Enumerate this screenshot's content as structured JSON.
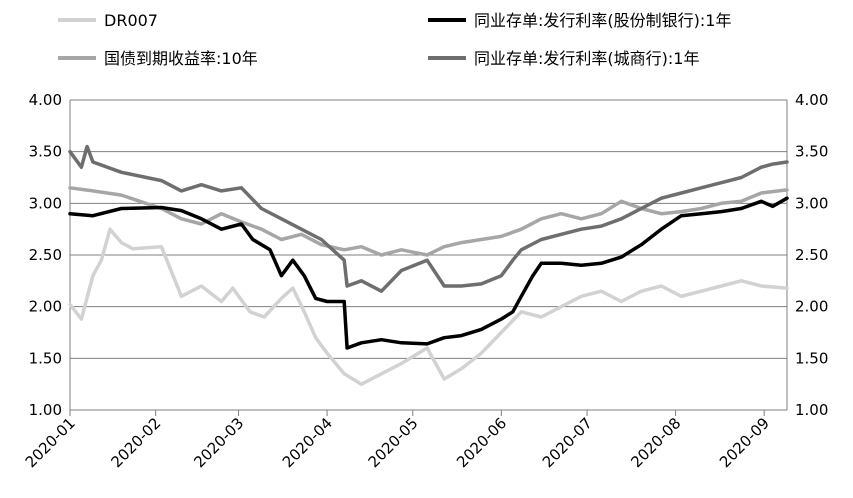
{
  "chart_data": {
    "type": "line",
    "title": "",
    "xlabel": "",
    "ylabel": "",
    "ylim": [
      1.0,
      4.0
    ],
    "y_ticks": [
      "1.00",
      "1.50",
      "2.00",
      "2.50",
      "3.00",
      "3.50",
      "4.00"
    ],
    "y_tick_values": [
      1.0,
      1.5,
      2.0,
      2.5,
      3.0,
      3.5,
      4.0
    ],
    "xlim": [
      "2020-01-02",
      "2020-09-09"
    ],
    "x_ticks": [
      "2020-01",
      "2020-02",
      "2020-03",
      "2020-04",
      "2020-05",
      "2020-06",
      "2020-07",
      "2020-08",
      "2020-09"
    ],
    "x_tick_dates": [
      "2020-01-01",
      "2020-02-01",
      "2020-03-01",
      "2020-04-01",
      "2020-05-01",
      "2020-06-01",
      "2020-07-01",
      "2020-08-01",
      "2020-09-01"
    ],
    "grid": "horizontal",
    "secondary_y_axis": true,
    "legend_position": "top",
    "series": [
      {
        "name": "DR007",
        "color": "#d2d2d2",
        "width": 3.5,
        "x": [
          "2020-01-02",
          "2020-01-06",
          "2020-01-10",
          "2020-01-13",
          "2020-01-16",
          "2020-01-20",
          "2020-01-24",
          "2020-02-03",
          "2020-02-10",
          "2020-02-17",
          "2020-02-24",
          "2020-02-28",
          "2020-03-05",
          "2020-03-10",
          "2020-03-16",
          "2020-03-20",
          "2020-03-24",
          "2020-03-28",
          "2020-04-01",
          "2020-04-07",
          "2020-04-13",
          "2020-04-20",
          "2020-04-27",
          "2020-05-06",
          "2020-05-12",
          "2020-05-18",
          "2020-05-25",
          "2020-06-01",
          "2020-06-08",
          "2020-06-15",
          "2020-06-22",
          "2020-06-29",
          "2020-07-06",
          "2020-07-13",
          "2020-07-20",
          "2020-07-27",
          "2020-08-03",
          "2020-08-10",
          "2020-08-17",
          "2020-08-24",
          "2020-08-31",
          "2020-09-09"
        ],
        "y": [
          2.02,
          1.88,
          2.3,
          2.45,
          2.75,
          2.62,
          2.56,
          2.58,
          2.1,
          2.2,
          2.05,
          2.18,
          1.95,
          1.9,
          2.08,
          2.18,
          1.95,
          1.7,
          1.55,
          1.35,
          1.25,
          1.35,
          1.45,
          1.6,
          1.3,
          1.4,
          1.55,
          1.75,
          1.95,
          1.9,
          2.0,
          2.1,
          2.15,
          2.05,
          2.15,
          2.2,
          2.1,
          2.15,
          2.2,
          2.25,
          2.2,
          2.18
        ]
      },
      {
        "name": "国债到期收益率:10年",
        "color": "#a6a6a6",
        "width": 3.5,
        "x": [
          "2020-01-02",
          "2020-01-10",
          "2020-01-20",
          "2020-02-03",
          "2020-02-10",
          "2020-02-17",
          "2020-02-24",
          "2020-03-02",
          "2020-03-09",
          "2020-03-16",
          "2020-03-23",
          "2020-03-30",
          "2020-04-07",
          "2020-04-13",
          "2020-04-20",
          "2020-04-27",
          "2020-05-06",
          "2020-05-12",
          "2020-05-18",
          "2020-05-25",
          "2020-06-01",
          "2020-06-08",
          "2020-06-15",
          "2020-06-22",
          "2020-06-29",
          "2020-07-06",
          "2020-07-13",
          "2020-07-20",
          "2020-07-27",
          "2020-08-03",
          "2020-08-10",
          "2020-08-17",
          "2020-08-24",
          "2020-08-31",
          "2020-09-09"
        ],
        "y": [
          3.15,
          3.12,
          3.08,
          2.95,
          2.85,
          2.8,
          2.9,
          2.82,
          2.75,
          2.65,
          2.7,
          2.6,
          2.55,
          2.58,
          2.5,
          2.55,
          2.5,
          2.58,
          2.62,
          2.65,
          2.68,
          2.75,
          2.85,
          2.9,
          2.85,
          2.9,
          3.02,
          2.95,
          2.9,
          2.92,
          2.95,
          3.0,
          3.02,
          3.1,
          3.13
        ]
      },
      {
        "name": "同业存单:发行利率(股份制银行):1年",
        "color": "#000000",
        "width": 3.5,
        "x": [
          "2020-01-02",
          "2020-01-10",
          "2020-01-20",
          "2020-02-03",
          "2020-02-10",
          "2020-02-17",
          "2020-02-24",
          "2020-03-02",
          "2020-03-06",
          "2020-03-12",
          "2020-03-16",
          "2020-03-20",
          "2020-03-24",
          "2020-03-28",
          "2020-04-01",
          "2020-04-07",
          "2020-04-08",
          "2020-04-13",
          "2020-04-20",
          "2020-04-27",
          "2020-05-06",
          "2020-05-12",
          "2020-05-18",
          "2020-05-25",
          "2020-06-01",
          "2020-06-05",
          "2020-06-08",
          "2020-06-12",
          "2020-06-15",
          "2020-06-22",
          "2020-06-29",
          "2020-07-06",
          "2020-07-13",
          "2020-07-20",
          "2020-07-27",
          "2020-08-03",
          "2020-08-10",
          "2020-08-17",
          "2020-08-24",
          "2020-08-31",
          "2020-09-04",
          "2020-09-09"
        ],
        "y": [
          2.9,
          2.88,
          2.95,
          2.96,
          2.93,
          2.85,
          2.75,
          2.8,
          2.65,
          2.55,
          2.3,
          2.45,
          2.3,
          2.08,
          2.05,
          2.05,
          1.6,
          1.65,
          1.68,
          1.65,
          1.64,
          1.7,
          1.72,
          1.78,
          1.88,
          1.95,
          2.1,
          2.3,
          2.42,
          2.42,
          2.4,
          2.42,
          2.48,
          2.6,
          2.75,
          2.88,
          2.9,
          2.92,
          2.95,
          3.02,
          2.97,
          3.05
        ]
      },
      {
        "name": "同业存单:发行利率(城商行):1年",
        "color": "#6e6e6e",
        "width": 3.5,
        "x": [
          "2020-01-02",
          "2020-01-06",
          "2020-01-08",
          "2020-01-10",
          "2020-01-20",
          "2020-02-03",
          "2020-02-10",
          "2020-02-17",
          "2020-02-24",
          "2020-03-02",
          "2020-03-09",
          "2020-03-16",
          "2020-03-23",
          "2020-03-30",
          "2020-04-07",
          "2020-04-08",
          "2020-04-13",
          "2020-04-20",
          "2020-04-27",
          "2020-05-06",
          "2020-05-12",
          "2020-05-18",
          "2020-05-25",
          "2020-06-01",
          "2020-06-05",
          "2020-06-08",
          "2020-06-15",
          "2020-06-22",
          "2020-06-29",
          "2020-07-06",
          "2020-07-13",
          "2020-07-20",
          "2020-07-27",
          "2020-08-03",
          "2020-08-10",
          "2020-08-17",
          "2020-08-24",
          "2020-08-31",
          "2020-09-04",
          "2020-09-09"
        ],
        "y": [
          3.5,
          3.35,
          3.55,
          3.4,
          3.3,
          3.22,
          3.12,
          3.18,
          3.12,
          3.15,
          2.95,
          2.85,
          2.75,
          2.65,
          2.45,
          2.2,
          2.25,
          2.15,
          2.35,
          2.45,
          2.2,
          2.2,
          2.22,
          2.3,
          2.45,
          2.55,
          2.65,
          2.7,
          2.75,
          2.78,
          2.85,
          2.95,
          3.05,
          3.1,
          3.15,
          3.2,
          3.25,
          3.35,
          3.38,
          3.4
        ]
      }
    ]
  }
}
